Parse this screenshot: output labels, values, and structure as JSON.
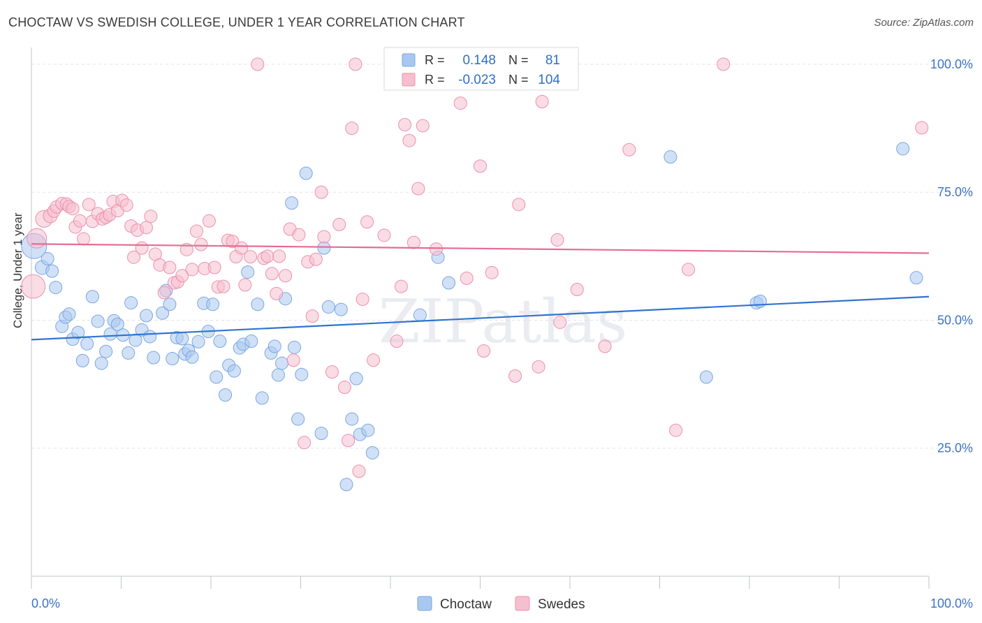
{
  "title": "CHOCTAW VS SWEDISH COLLEGE, UNDER 1 YEAR CORRELATION CHART",
  "source": "Source: ZipAtlas.com",
  "watermark": "ZIPatlas",
  "chart_data": {
    "type": "scatter",
    "ylabel": "College, Under 1 year",
    "xlim": [
      0,
      100
    ],
    "ylim": [
      0,
      103
    ],
    "x_tick_labels": [
      "0.0%",
      "100.0%"
    ],
    "y_ticks": [
      25,
      50,
      75,
      100
    ],
    "y_tick_labels": [
      "25.0%",
      "50.0%",
      "75.0%",
      "100.0%"
    ],
    "grid": true,
    "legend_top": [
      {
        "r_label": "R =",
        "r_value": "0.148",
        "n_label": "N =",
        "n_value": "81"
      },
      {
        "r_label": "R =",
        "r_value": "-0.023",
        "n_label": "N =",
        "n_value": "104"
      }
    ],
    "series": [
      {
        "name": "Choctaw",
        "color": "#a9c8f0",
        "stroke": "#7aa6e0",
        "line_color": "#2f74d0",
        "trend": [
          [
            0,
            46.2
          ],
          [
            100,
            54.6
          ]
        ],
        "points": [
          [
            0.3,
            64.5,
            18
          ],
          [
            1.2,
            60.3,
            10
          ],
          [
            1.8,
            62,
            9
          ],
          [
            2.3,
            59.6,
            9
          ],
          [
            2.7,
            56.4,
            9
          ],
          [
            3.4,
            48.8,
            9
          ],
          [
            3.8,
            50.6,
            9
          ],
          [
            4.2,
            51.2,
            9
          ],
          [
            4.6,
            46.3,
            9
          ],
          [
            5.2,
            47.6,
            9
          ],
          [
            5.7,
            42.1,
            9
          ],
          [
            6.2,
            45.4,
            9
          ],
          [
            6.8,
            54.6,
            9
          ],
          [
            7.4,
            49.8,
            9
          ],
          [
            7.8,
            41.6,
            9
          ],
          [
            8.3,
            43.9,
            9
          ],
          [
            8.8,
            47.3,
            9
          ],
          [
            9.2,
            49.9,
            9
          ],
          [
            9.6,
            49.2,
            9
          ],
          [
            10.2,
            47.1,
            9
          ],
          [
            10.8,
            43.6,
            9
          ],
          [
            11.1,
            53.4,
            9
          ],
          [
            11.6,
            46.1,
            9
          ],
          [
            12.3,
            48.1,
            9
          ],
          [
            12.8,
            50.9,
            9
          ],
          [
            13.2,
            46.8,
            9
          ],
          [
            13.6,
            42.7,
            9
          ],
          [
            14.6,
            51.4,
            9
          ],
          [
            15,
            55.8,
            9
          ],
          [
            15.4,
            53.1,
            9
          ],
          [
            15.7,
            42.5,
            9
          ],
          [
            16.2,
            46.6,
            9
          ],
          [
            16.8,
            46.4,
            9
          ],
          [
            17.1,
            43.4,
            9
          ],
          [
            17.5,
            44.1,
            9
          ],
          [
            17.9,
            42.8,
            9
          ],
          [
            18.6,
            45.8,
            9
          ],
          [
            19.2,
            53.3,
            9
          ],
          [
            19.7,
            47.8,
            9
          ],
          [
            20.2,
            53.1,
            9
          ],
          [
            20.6,
            38.9,
            9
          ],
          [
            21,
            45.9,
            9
          ],
          [
            21.6,
            35.4,
            9
          ],
          [
            22,
            41.2,
            9
          ],
          [
            22.6,
            40.1,
            9
          ],
          [
            23.2,
            44.6,
            9
          ],
          [
            23.6,
            45.3,
            9
          ],
          [
            24.1,
            59.4,
            9
          ],
          [
            24.5,
            45.9,
            9
          ],
          [
            25.2,
            53.1,
            9
          ],
          [
            25.7,
            34.8,
            9
          ],
          [
            26.7,
            43.6,
            9
          ],
          [
            27.1,
            44.9,
            9
          ],
          [
            27.5,
            39.3,
            9
          ],
          [
            27.9,
            41.6,
            9
          ],
          [
            28.3,
            54.2,
            9
          ],
          [
            29,
            72.9,
            9
          ],
          [
            29.3,
            44.7,
            9
          ],
          [
            29.7,
            30.7,
            9
          ],
          [
            30.1,
            39.4,
            9
          ],
          [
            30.6,
            78.7,
            9
          ],
          [
            32.3,
            27.9,
            9
          ],
          [
            32.6,
            64.1,
            9
          ],
          [
            33.1,
            52.6,
            9
          ],
          [
            34.5,
            52.1,
            9
          ],
          [
            35.1,
            17.9,
            9
          ],
          [
            35.7,
            30.7,
            9
          ],
          [
            36.2,
            38.6,
            9
          ],
          [
            36.6,
            27.7,
            9
          ],
          [
            37.5,
            28.5,
            9
          ],
          [
            38,
            24.1,
            9
          ],
          [
            43.3,
            51,
            9
          ],
          [
            45.3,
            62.3,
            9
          ],
          [
            46.5,
            57.3,
            9
          ],
          [
            71.2,
            81.9,
            9
          ],
          [
            75.2,
            38.9,
            9
          ],
          [
            80.8,
            53.4,
            9
          ],
          [
            81.2,
            53.7,
            9
          ],
          [
            97.1,
            83.5,
            9
          ],
          [
            98.6,
            58.3,
            9
          ]
        ]
      },
      {
        "name": "Swedes",
        "color": "#f6bfd0",
        "stroke": "#ec90ad",
        "line_color": "#e46d93",
        "trend": [
          [
            0,
            64.9
          ],
          [
            100,
            63.1
          ]
        ],
        "points": [
          [
            0.2,
            56.6,
            17
          ],
          [
            0.6,
            66,
            14
          ],
          [
            1.4,
            69.8,
            12
          ],
          [
            2.1,
            70.4,
            10
          ],
          [
            2.5,
            71.3,
            9
          ],
          [
            2.8,
            72.1,
            9
          ],
          [
            3.4,
            72.8,
            9
          ],
          [
            3.9,
            72.7,
            9
          ],
          [
            4.2,
            72.2,
            9
          ],
          [
            4.6,
            71.8,
            9
          ],
          [
            4.9,
            68.2,
            9
          ],
          [
            5.4,
            69.4,
            9
          ],
          [
            5.8,
            65.9,
            9
          ],
          [
            6.4,
            72.6,
            9
          ],
          [
            6.8,
            69.3,
            9
          ],
          [
            7.4,
            70.8,
            9
          ],
          [
            7.9,
            69.8,
            9
          ],
          [
            8.3,
            70.1,
            9
          ],
          [
            8.7,
            70.6,
            9
          ],
          [
            9.1,
            73.2,
            9
          ],
          [
            9.6,
            71.4,
            9
          ],
          [
            10.1,
            73.4,
            9
          ],
          [
            10.6,
            72.5,
            9
          ],
          [
            11.1,
            68.4,
            9
          ],
          [
            11.4,
            62.3,
            9
          ],
          [
            11.8,
            67.6,
            9
          ],
          [
            12.3,
            64.1,
            9
          ],
          [
            12.8,
            68.1,
            9
          ],
          [
            13.3,
            70.3,
            9
          ],
          [
            13.8,
            62.9,
            9
          ],
          [
            14.3,
            60.8,
            9
          ],
          [
            14.8,
            55.4,
            9
          ],
          [
            15.4,
            60.3,
            9
          ],
          [
            15.9,
            57.3,
            9
          ],
          [
            16.3,
            57.5,
            9
          ],
          [
            16.8,
            58.7,
            9
          ],
          [
            17.3,
            63.8,
            9
          ],
          [
            17.9,
            59.9,
            9
          ],
          [
            18.4,
            67.4,
            9
          ],
          [
            18.9,
            64.8,
            9
          ],
          [
            19.3,
            60.1,
            9
          ],
          [
            19.8,
            69.4,
            9
          ],
          [
            20.4,
            60.3,
            9
          ],
          [
            20.8,
            56.5,
            9
          ],
          [
            21.4,
            56.6,
            9
          ],
          [
            21.9,
            65.6,
            9
          ],
          [
            22.4,
            65.4,
            9
          ],
          [
            22.8,
            62.4,
            9
          ],
          [
            23.4,
            64.1,
            9
          ],
          [
            23.8,
            56.9,
            9
          ],
          [
            24.4,
            62.4,
            9
          ],
          [
            25.2,
            100,
            9
          ],
          [
            25.9,
            62.1,
            9
          ],
          [
            26.3,
            62.5,
            9
          ],
          [
            26.8,
            59.1,
            9
          ],
          [
            27.3,
            55.2,
            9
          ],
          [
            27.6,
            62.5,
            9
          ],
          [
            28.3,
            58.7,
            9
          ],
          [
            28.8,
            67.8,
            9
          ],
          [
            29.2,
            42.2,
            9
          ],
          [
            29.8,
            66.7,
            9
          ],
          [
            30.4,
            26.1,
            9
          ],
          [
            30.8,
            61.4,
            9
          ],
          [
            31.3,
            50.8,
            9
          ],
          [
            31.7,
            61.9,
            9
          ],
          [
            32.3,
            75,
            9
          ],
          [
            32.6,
            66.3,
            9
          ],
          [
            33.5,
            39.9,
            9
          ],
          [
            34.3,
            68.7,
            9
          ],
          [
            34.9,
            36.9,
            9
          ],
          [
            35.3,
            26.5,
            9
          ],
          [
            35.7,
            87.5,
            9
          ],
          [
            36.1,
            100,
            9
          ],
          [
            36.5,
            20.5,
            9
          ],
          [
            36.9,
            54.1,
            9
          ],
          [
            37.4,
            69.2,
            9
          ],
          [
            38.1,
            42.2,
            9
          ],
          [
            39.3,
            66.6,
            9
          ],
          [
            40.7,
            45.9,
            9
          ],
          [
            41.2,
            56.6,
            9
          ],
          [
            41.6,
            88.2,
            9
          ],
          [
            42.1,
            85.1,
            9
          ],
          [
            42.6,
            65.2,
            9
          ],
          [
            43.1,
            75.7,
            9
          ],
          [
            43.6,
            88,
            9
          ],
          [
            45.1,
            63.9,
            9
          ],
          [
            46.8,
            100,
            11
          ],
          [
            47.8,
            92.4,
            9
          ],
          [
            48.5,
            58.2,
            9
          ],
          [
            50,
            80.1,
            9
          ],
          [
            50.4,
            44,
            9
          ],
          [
            51.3,
            59.3,
            9
          ],
          [
            53.9,
            39.1,
            9
          ],
          [
            54.3,
            72.6,
            9
          ],
          [
            56.5,
            40.9,
            9
          ],
          [
            56.9,
            92.7,
            9
          ],
          [
            58.6,
            65.7,
            9
          ],
          [
            58.9,
            49.6,
            9
          ],
          [
            60.8,
            56,
            9
          ],
          [
            63.9,
            44.9,
            9
          ],
          [
            66.6,
            83.3,
            9
          ],
          [
            73.2,
            59.9,
            9
          ],
          [
            71.8,
            28.5,
            9
          ],
          [
            77.1,
            100,
            9
          ],
          [
            99.2,
            87.6,
            9
          ]
        ]
      }
    ]
  }
}
